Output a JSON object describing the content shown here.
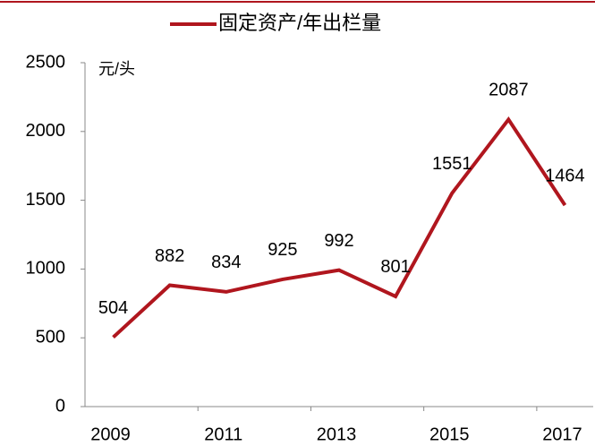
{
  "chart_data": {
    "type": "line",
    "y_label": "元/头",
    "categories": [
      "2009",
      null,
      "2011",
      null,
      "2013",
      null,
      "2015",
      null,
      "2017"
    ],
    "series": [
      {
        "name": "固定资产/年出栏量",
        "color": "#b0161e",
        "values": [
          504,
          882,
          834,
          925,
          992,
          801,
          1551,
          2087,
          1464
        ]
      }
    ],
    "ylim": [
      0,
      2500
    ],
    "yticks": [
      0,
      500,
      1000,
      1500,
      2000,
      2500
    ],
    "legend": "top",
    "data_labels": true
  }
}
